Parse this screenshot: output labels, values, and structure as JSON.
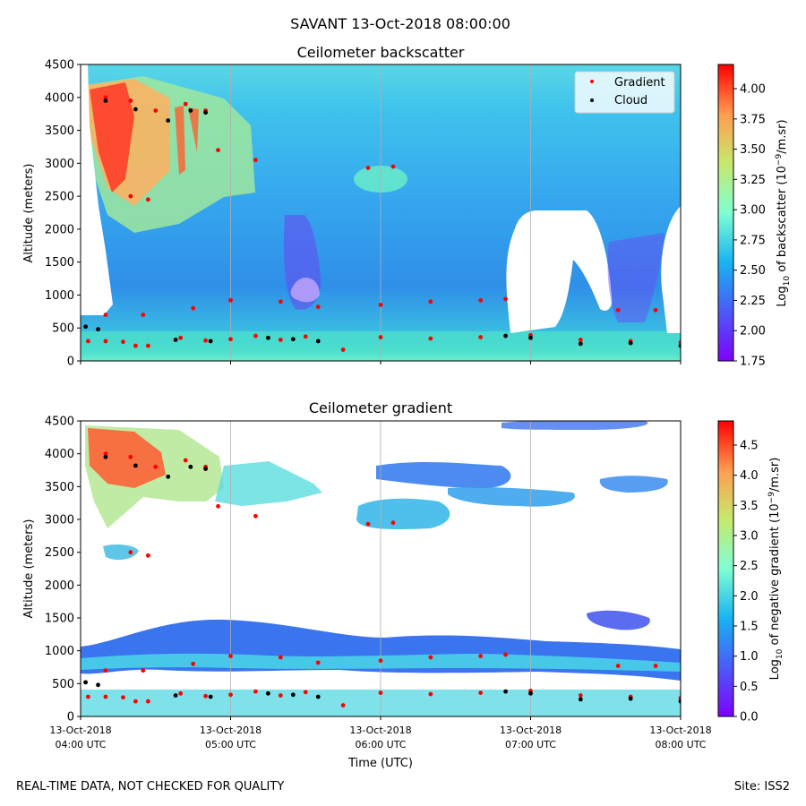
{
  "figure": {
    "suptitle": "SAVANT 13-Oct-2018 08:00:00",
    "footer_left": "REAL-TIME DATA, NOT CHECKED FOR QUALITY",
    "footer_right": "Site: ISS2",
    "xlabel": "Time (UTC)",
    "x_ticks": [
      {
        "l1": "13-Oct-2018",
        "l2": "04:00 UTC"
      },
      {
        "l1": "13-Oct-2018",
        "l2": "05:00 UTC"
      },
      {
        "l1": "13-Oct-2018",
        "l2": "06:00 UTC"
      },
      {
        "l1": "13-Oct-2018",
        "l2": "07:00 UTC"
      },
      {
        "l1": "13-Oct-2018",
        "l2": "08:00 UTC"
      }
    ]
  },
  "chart_data": [
    {
      "type": "heatmap",
      "title": "Ceilometer backscatter",
      "ylabel": "Altitude (meters)",
      "x_range": [
        "2018-10-13 04:00 UTC",
        "2018-10-13 08:00 UTC"
      ],
      "ylim": [
        0,
        4500
      ],
      "y_ticks": [
        0,
        500,
        1000,
        1500,
        2000,
        2500,
        3000,
        3500,
        4000,
        4500
      ],
      "colorbar": {
        "label": "Log10 of backscatter (10^-9/m.sr)",
        "label_main": "Log",
        "label_sub": "10",
        "label_mid": " of backscatter (10",
        "label_sup": "−9",
        "label_end": "/m.sr)",
        "range": [
          1.75,
          4.2
        ],
        "ticks": [
          "1.75",
          "2.00",
          "2.25",
          "2.50",
          "2.75",
          "3.00",
          "3.25",
          "3.50",
          "3.75",
          "4.00"
        ],
        "colormap": "rainbow"
      },
      "legend": {
        "placement": "top-right",
        "entries": [
          {
            "label": "Gradient",
            "color": "#ff0000"
          },
          {
            "label": "Cloud",
            "color": "#000000"
          }
        ]
      },
      "grid": "vertical at hourly ticks",
      "series": [
        {
          "name": "Gradient",
          "points": [
            [
              "04:03",
              300
            ],
            [
              "04:10",
              300
            ],
            [
              "04:17",
              290
            ],
            [
              "04:22",
              230
            ],
            [
              "04:27",
              230
            ],
            [
              "04:40",
              350
            ],
            [
              "04:50",
              310
            ],
            [
              "05:00",
              330
            ],
            [
              "05:10",
              380
            ],
            [
              "05:20",
              320
            ],
            [
              "05:30",
              370
            ],
            [
              "05:45",
              170
            ],
            [
              "06:00",
              360
            ],
            [
              "06:20",
              340
            ],
            [
              "06:40",
              360
            ],
            [
              "07:00",
              390
            ],
            [
              "07:20",
              320
            ],
            [
              "07:40",
              300
            ],
            [
              "08:00",
              280
            ],
            [
              "04:10",
              700
            ],
            [
              "04:25",
              700
            ],
            [
              "04:45",
              800
            ],
            [
              "05:00",
              920
            ],
            [
              "05:20",
              900
            ],
            [
              "05:35",
              820
            ],
            [
              "06:00",
              850
            ],
            [
              "06:20",
              900
            ],
            [
              "06:40",
              920
            ],
            [
              "06:50",
              940
            ],
            [
              "07:35",
              770
            ],
            [
              "07:50",
              770
            ],
            [
              "04:10",
              4000
            ],
            [
              "04:20",
              3950
            ],
            [
              "04:30",
              3800
            ],
            [
              "04:42",
              3900
            ],
            [
              "04:50",
              3800
            ],
            [
              "04:20",
              2500
            ],
            [
              "04:27",
              2450
            ],
            [
              "04:55",
              3200
            ],
            [
              "05:10",
              3050
            ],
            [
              "05:55",
              2930
            ],
            [
              "06:05",
              2950
            ]
          ]
        },
        {
          "name": "Cloud",
          "points": [
            [
              "04:02",
              520
            ],
            [
              "04:07",
              480
            ],
            [
              "04:38",
              320
            ],
            [
              "04:52",
              300
            ],
            [
              "05:15",
              350
            ],
            [
              "05:25",
              330
            ],
            [
              "05:35",
              300
            ],
            [
              "06:50",
              380
            ],
            [
              "07:00",
              350
            ],
            [
              "07:20",
              260
            ],
            [
              "07:40",
              270
            ],
            [
              "08:00",
              230
            ],
            [
              "04:10",
              3950
            ],
            [
              "04:22",
              3820
            ],
            [
              "04:35",
              3650
            ],
            [
              "04:44",
              3800
            ],
            [
              "04:50",
              3770
            ]
          ]
        }
      ]
    },
    {
      "type": "heatmap",
      "title": "Ceilometer gradient",
      "ylabel": "Altitude (meters)",
      "x_range": [
        "2018-10-13 04:00 UTC",
        "2018-10-13 08:00 UTC"
      ],
      "ylim": [
        0,
        4500
      ],
      "y_ticks": [
        0,
        500,
        1000,
        1500,
        2000,
        2500,
        3000,
        3500,
        4000,
        4500
      ],
      "colorbar": {
        "label": "Log10 of negative gradient (10^-9/m.sr)",
        "label_main": "Log",
        "label_sub": "10",
        "label_mid": " of negative gradient (10",
        "label_sup": "−9",
        "label_end": "/m.sr)",
        "range": [
          0.0,
          4.9
        ],
        "ticks": [
          "0.0",
          "0.5",
          "1.0",
          "1.5",
          "2.0",
          "2.5",
          "3.0",
          "3.5",
          "4.0",
          "4.5"
        ],
        "colormap": "rainbow"
      },
      "grid": "vertical at hourly ticks"
    }
  ],
  "colors": {
    "gradient_marker": "#ff0000",
    "cloud_marker": "#000000"
  }
}
